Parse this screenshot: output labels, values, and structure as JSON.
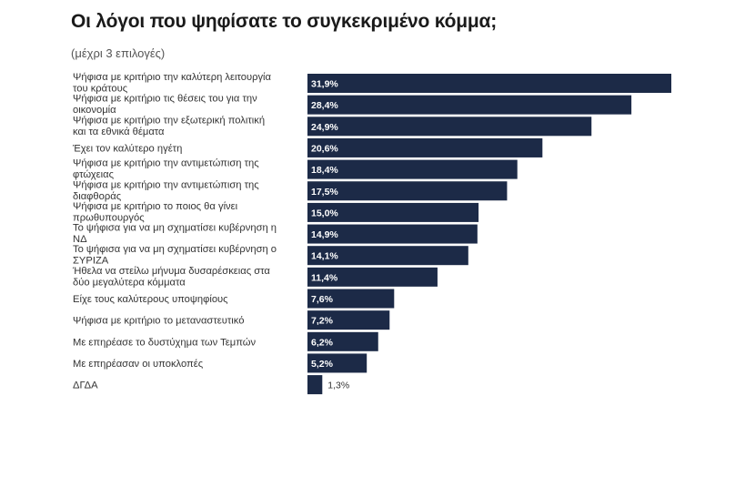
{
  "chart_data": {
    "type": "bar",
    "orientation": "horizontal",
    "title": "Οι λόγοι που ψηφίσατε το συγκεκριμένο κόμμα;",
    "subtitle": "(μέχρι 3 επιλογές)",
    "bar_color": "#1c2a47",
    "xlim": [
      0,
      31.9
    ],
    "categories": [
      [
        "Ψήφισα με κριτήριο την καλύτερη λειτουργία",
        "του κράτους"
      ],
      [
        "Ψήφισα με κριτήριο τις θέσεις του για την",
        "οικονομία"
      ],
      [
        "Ψήφισα με κριτήριο την εξωτερική πολιτική",
        "και τα εθνικά θέματα"
      ],
      [
        "Έχει τον καλύτερο ηγέτη"
      ],
      [
        "Ψήφισα με κριτήριο την αντιμετώπιση της",
        "φτώχειας"
      ],
      [
        "Ψήφισα με κριτήριο την αντιμετώπιση της",
        "διαφθοράς"
      ],
      [
        "Ψήφισα με κριτήριο το ποιος θα γίνει",
        "πρωθυπουργός"
      ],
      [
        "Το ψήφισα για να μη σχηματίσει κυβέρνηση η",
        "ΝΔ"
      ],
      [
        "Το ψήφισα για να μη σχηματίσει κυβέρνηση ο",
        "ΣΥΡΙΖΑ"
      ],
      [
        "Ήθελα να στείλω μήνυμα δυσαρέσκειας στα",
        "δύο μεγαλύτερα κόμματα"
      ],
      [
        "Είχε τους καλύτερους υποψηφίους"
      ],
      [
        "Ψήφισα με κριτήριο το μεταναστευτικό"
      ],
      [
        "Με επηρέασε το δυστύχημα των Τεμπών"
      ],
      [
        "Με επηρέασαν οι υποκλοπές"
      ],
      [
        "ΔΓΔΑ"
      ]
    ],
    "values": [
      31.9,
      28.4,
      24.9,
      20.6,
      18.4,
      17.5,
      15.0,
      14.9,
      14.1,
      11.4,
      7.6,
      7.2,
      6.2,
      5.2,
      1.3
    ],
    "value_labels": [
      "31,9%",
      "28,4%",
      "24,9%",
      "20,6%",
      "18,4%",
      "17,5%",
      "15,0%",
      "14,9%",
      "14,1%",
      "11,4%",
      "7,6%",
      "7,2%",
      "6,2%",
      "5,2%",
      "1,3%"
    ]
  }
}
